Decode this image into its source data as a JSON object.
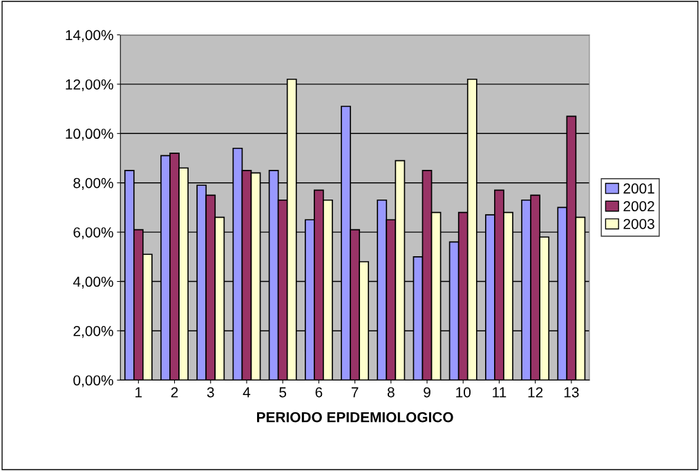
{
  "chart_data": {
    "type": "bar",
    "xlabel": "PERIODO EPIDEMIOLOGICO",
    "categories": [
      "1",
      "2",
      "3",
      "4",
      "5",
      "6",
      "7",
      "8",
      "9",
      "10",
      "11",
      "12",
      "13"
    ],
    "series": [
      {
        "name": "2001",
        "color": "#9999ff",
        "values": [
          8.5,
          9.1,
          7.9,
          9.4,
          8.5,
          6.5,
          11.1,
          7.3,
          5.0,
          5.6,
          6.7,
          7.3,
          7.0
        ]
      },
      {
        "name": "2002",
        "color": "#993366",
        "values": [
          6.1,
          9.2,
          7.5,
          8.5,
          7.3,
          7.7,
          6.1,
          6.5,
          8.5,
          6.8,
          7.7,
          7.5,
          10.7
        ]
      },
      {
        "name": "2003",
        "color": "#ffffcc",
        "values": [
          5.1,
          8.6,
          6.6,
          8.4,
          12.2,
          7.3,
          4.8,
          8.9,
          6.8,
          12.2,
          6.8,
          5.8,
          6.6
        ]
      }
    ],
    "ylim": [
      0,
      14
    ],
    "yticks": [
      {
        "value": 0,
        "label": "0,00%"
      },
      {
        "value": 2,
        "label": "2,00%"
      },
      {
        "value": 4,
        "label": "4,00%"
      },
      {
        "value": 6,
        "label": "6,00%"
      },
      {
        "value": 8,
        "label": "8,00%"
      },
      {
        "value": 10,
        "label": "10,00%"
      },
      {
        "value": 12,
        "label": "12,00%"
      },
      {
        "value": 14,
        "label": "14,00%"
      }
    ],
    "grid": "y",
    "legend": "right"
  }
}
